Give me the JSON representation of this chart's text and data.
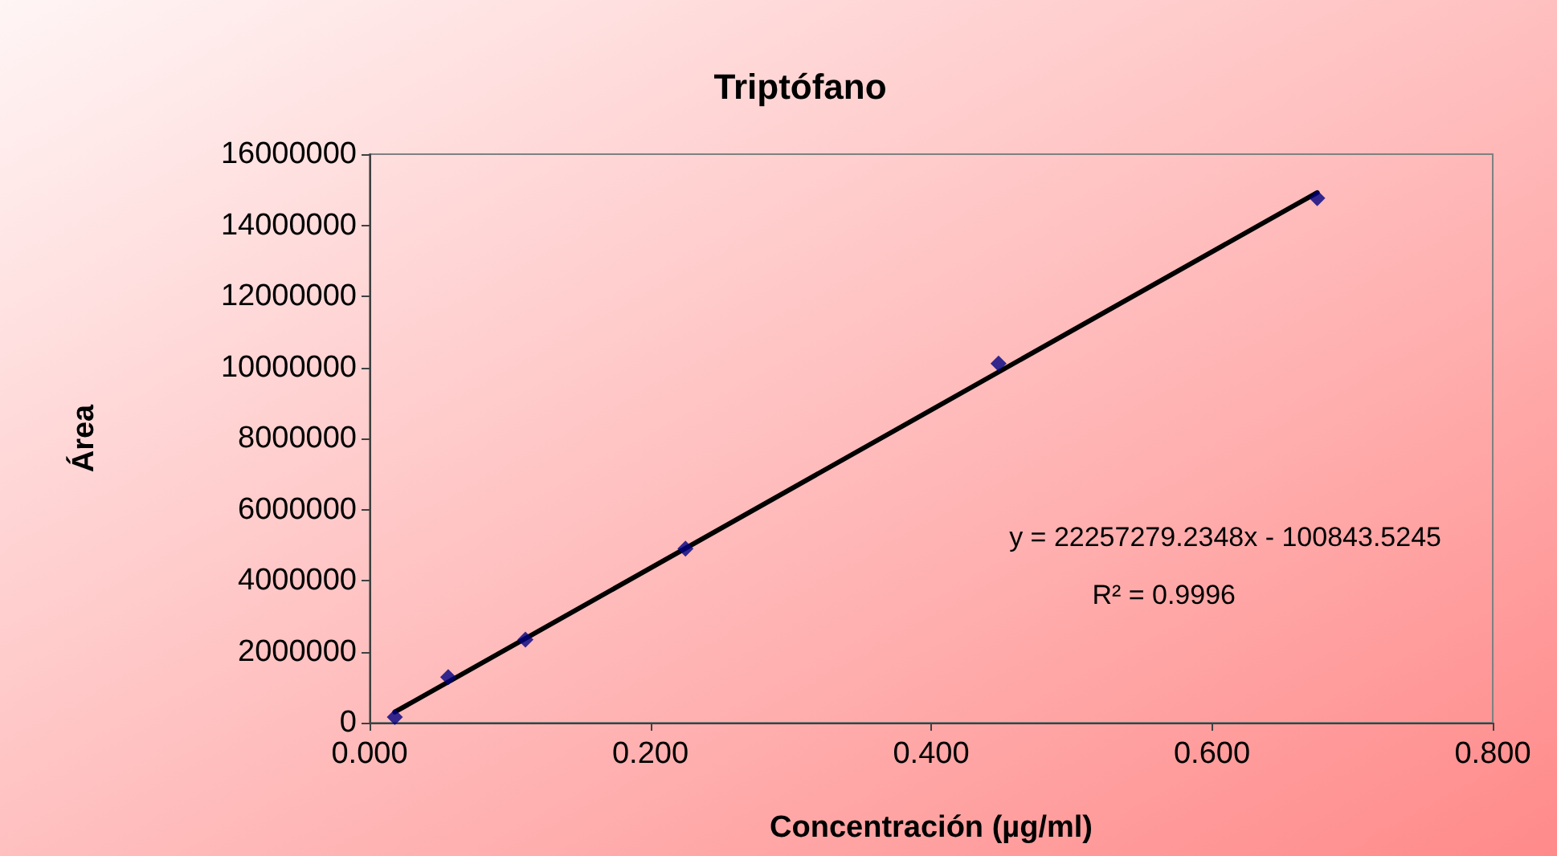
{
  "chart_data": {
    "type": "scatter",
    "title": "Triptófano",
    "xlabel": "Concentración (µg/ml)",
    "ylabel": "Área",
    "x": [
      0.018,
      0.056,
      0.111,
      0.225,
      0.448,
      0.675
    ],
    "series": [
      {
        "color": "#000080",
        "values": [
          160000,
          1280000,
          2340000,
          4900000,
          10110000,
          14760000
        ]
      },
      {
        "type": "line",
        "color": "#000000",
        "x": [
          0.018,
          0.675
        ],
        "values": [
          300000,
          14920000
        ],
        "marker": "none",
        "line_style": "solid"
      }
    ],
    "xlim": [
      0,
      0.8
    ],
    "xticks": [
      {
        "value": 0,
        "label": "0.000"
      },
      {
        "value": 0.2,
        "label": "0.200"
      },
      {
        "value": 0.4,
        "label": "0.400"
      },
      {
        "value": 0.6,
        "label": "0.600"
      },
      {
        "value": 0.8,
        "label": "0.800"
      }
    ],
    "ylim": [
      0,
      16000000
    ],
    "yticks": [
      0,
      2000000,
      4000000,
      6000000,
      8000000,
      10000000,
      12000000,
      14000000,
      16000000
    ],
    "annotations": [
      "y = 22257279.2348x - 100843.5245",
      "R² = 0.9996"
    ],
    "marker": "diamond",
    "grid": false
  }
}
